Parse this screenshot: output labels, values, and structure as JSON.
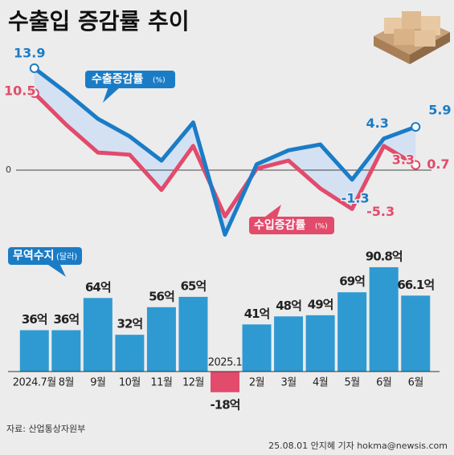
{
  "title": "수출입 증감률 추이",
  "chart_data": [
    {
      "type": "line",
      "series": [
        {
          "name": "수출증감률",
          "unit": "(%)",
          "color": "#1b7cc6",
          "values": [
            13.9,
            10.6,
            7.0,
            4.6,
            1.3,
            6.5,
            -8.8,
            0.8,
            2.7,
            3.5,
            -1.3,
            4.3,
            5.9
          ],
          "value_labels": [
            "13.9",
            null,
            null,
            null,
            null,
            null,
            null,
            null,
            null,
            null,
            "-1.3",
            "4.3",
            "5.9"
          ]
        },
        {
          "name": "수입증감률",
          "unit": "(%)",
          "color": "#e24b6b",
          "values": [
            10.5,
            6.2,
            2.4,
            2.1,
            -2.7,
            3.3,
            -6.3,
            0.2,
            1.3,
            -2.5,
            -5.3,
            3.3,
            0.7
          ],
          "value_labels": [
            "10.5",
            null,
            null,
            null,
            null,
            null,
            null,
            null,
            null,
            null,
            "-5.3",
            "3.3",
            "0.7"
          ]
        }
      ],
      "ylim": [
        -10,
        15
      ],
      "yticks": [
        0
      ],
      "fill_between": "#d3e1f3"
    },
    {
      "type": "bar",
      "title": "무역수지",
      "unit": "(달러)",
      "categories": [
        "2024.7월",
        "8월",
        "9월",
        "10월",
        "11월",
        "12월",
        "2025.1",
        "2월",
        "3월",
        "4월",
        "5월",
        "6월",
        "6월"
      ],
      "values": [
        36,
        36,
        64,
        32,
        56,
        65,
        -18,
        41,
        48,
        49,
        69,
        90.8,
        66.1
      ],
      "value_labels": [
        "36억",
        "36억",
        "64억",
        "32억",
        "56억",
        "65억",
        "-18억",
        "41억",
        "48억",
        "49억",
        "69억",
        "90.8억",
        "66.1억"
      ],
      "color": "#2f9ad2",
      "negative_color": "#e24b6b",
      "ylim": [
        -20,
        100
      ]
    }
  ],
  "source": "자료: 산업통상자원부",
  "credit": "25.08.01 안지혜 기자 hokma@newsis.com"
}
